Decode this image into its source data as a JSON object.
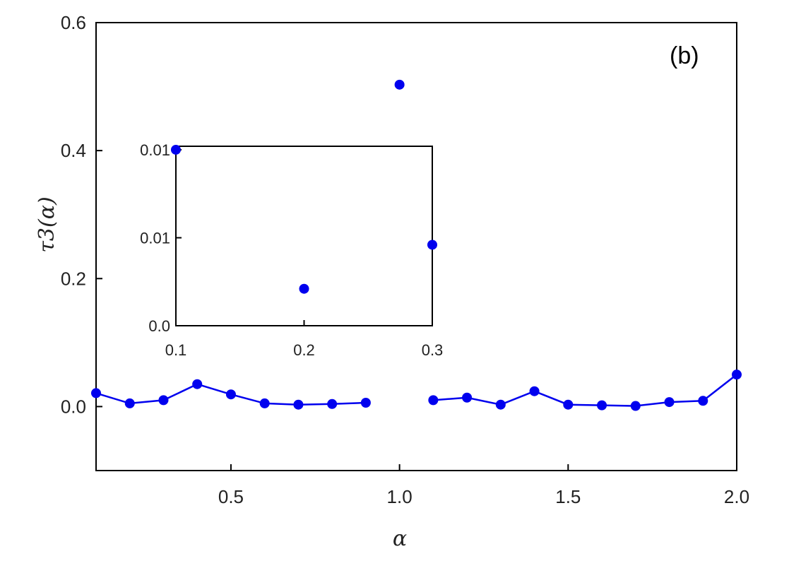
{
  "chart_data": [
    {
      "type": "line",
      "panel_label": "(b)",
      "xlabel": "α",
      "ylabel": "τ3(α)",
      "xlim": [
        0.1,
        2.0
      ],
      "ylim": [
        -0.1,
        0.6
      ],
      "xticks": [
        0.5,
        1.0,
        1.5,
        2.0
      ],
      "xtick_labels": [
        "0.5",
        "1.0",
        "1.5",
        "2.0"
      ],
      "yticks": [
        0.0,
        0.2,
        0.4,
        0.6
      ],
      "ytick_labels": [
        "0.0",
        "0.2",
        "0.4",
        "0.6"
      ],
      "grid": false,
      "color": "#0000ee",
      "series": [
        {
          "x": [
            0.1,
            0.2,
            0.3,
            0.4,
            0.5,
            0.6,
            0.7,
            0.8,
            0.9
          ],
          "y": [
            0.021,
            0.005,
            0.01,
            0.035,
            0.019,
            0.005,
            0.003,
            0.004,
            0.006
          ],
          "style": "line+markers"
        },
        {
          "x": [
            1.0
          ],
          "y": [
            0.503
          ],
          "style": "markers"
        },
        {
          "x": [
            1.1,
            1.2,
            1.3,
            1.4,
            1.5,
            1.6,
            1.7,
            1.8,
            1.9,
            2.0
          ],
          "y": [
            0.01,
            0.014,
            0.003,
            0.024,
            0.003,
            0.002,
            0.001,
            0.007,
            0.009,
            0.05
          ],
          "style": "line+markers"
        }
      ]
    },
    {
      "type": "scatter",
      "inset": true,
      "xlim": [
        0.1,
        0.3
      ],
      "ylim": [
        0.0,
        0.0102
      ],
      "xticks": [
        0.1,
        0.2,
        0.3
      ],
      "xtick_labels": [
        "0.1",
        "0.2",
        "0.3"
      ],
      "yticks": [
        0.0,
        0.005,
        0.01
      ],
      "ytick_labels": [
        "0.0",
        "0.01",
        "0.01"
      ],
      "color": "#0000ee",
      "series": [
        {
          "x": [
            0.1,
            0.2,
            0.3
          ],
          "y": [
            0.01,
            0.0021,
            0.0046
          ]
        }
      ]
    }
  ]
}
